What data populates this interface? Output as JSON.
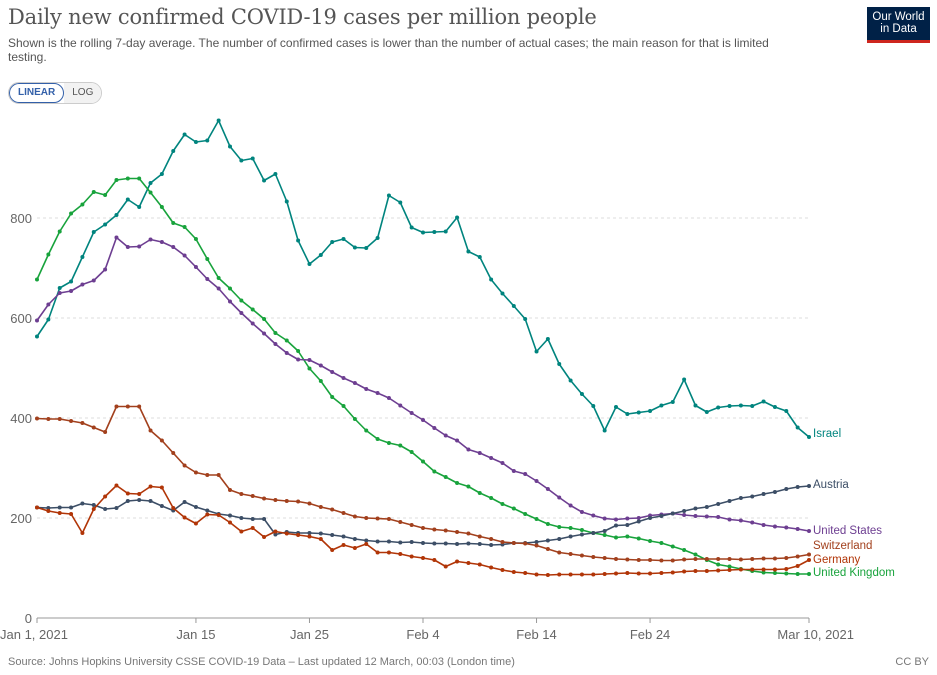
{
  "header": {
    "title": "Daily new confirmed COVID-19 cases per million people",
    "subtitle": "Shown is the rolling 7-day average. The number of confirmed cases is lower than the number of actual cases; the main reason for that is limited testing.",
    "logo_line1": "Our World",
    "logo_line2": "in Data"
  },
  "scale_toggle": {
    "linear": "LINEAR",
    "log": "LOG",
    "selected": "LINEAR"
  },
  "footer": {
    "source": "Source: Johns Hopkins University CSSE COVID-19 Data – Last updated 12 March, 00:03 (London time)",
    "license": "CC BY"
  },
  "chart_data": {
    "type": "line",
    "title": "Daily new confirmed COVID-19 cases per million people",
    "xlabel": "",
    "ylabel": "",
    "x_start": "Jan 1, 2021",
    "x_end": "Mar 10, 2021",
    "ylim": [
      0,
      1000
    ],
    "y_ticks": [
      0,
      200,
      400,
      600,
      800
    ],
    "x_ticks": [
      {
        "day": 0,
        "label": "Jan 1, 2021"
      },
      {
        "day": 14,
        "label": "Jan 15"
      },
      {
        "day": 24,
        "label": "Jan 25"
      },
      {
        "day": 34,
        "label": "Feb 4"
      },
      {
        "day": 44,
        "label": "Feb 14"
      },
      {
        "day": 54,
        "label": "Feb 24"
      },
      {
        "day": 68,
        "label": "Mar 10, 2021"
      }
    ],
    "grid": true,
    "legend": "end-of-line labels",
    "series": [
      {
        "name": "Israel",
        "color": "#00847e",
        "values": [
          563,
          597,
          660,
          673,
          722,
          772,
          787,
          806,
          837,
          822,
          870,
          888,
          934,
          967,
          952,
          955,
          995,
          943,
          915,
          919,
          875,
          888,
          833,
          755,
          708,
          726,
          752,
          758,
          741,
          740,
          760,
          845,
          831,
          781,
          771,
          772,
          773,
          801,
          733,
          722,
          677,
          649,
          624,
          598,
          533,
          558,
          508,
          475,
          448,
          424,
          375,
          422,
          408,
          411,
          414,
          425,
          432,
          477,
          425,
          412,
          421,
          424,
          425,
          424,
          433,
          422,
          414,
          381,
          362
        ]
      },
      {
        "name": "United Kingdom",
        "color": "#18a33c",
        "values": [
          677,
          727,
          773,
          809,
          827,
          852,
          846,
          876,
          879,
          879,
          851,
          822,
          790,
          782,
          758,
          718,
          680,
          659,
          635,
          617,
          598,
          570,
          555,
          534,
          499,
          474,
          442,
          424,
          398,
          375,
          358,
          350,
          345,
          332,
          313,
          293,
          282,
          270,
          263,
          250,
          240,
          228,
          219,
          208,
          198,
          188,
          182,
          180,
          176,
          170,
          166,
          161,
          163,
          159,
          154,
          150,
          143,
          136,
          127,
          116,
          107,
          103,
          98,
          94,
          91,
          90,
          89,
          88,
          88
        ]
      },
      {
        "name": "United States",
        "color": "#6d3e91",
        "values": [
          595,
          627,
          650,
          654,
          667,
          675,
          697,
          761,
          742,
          743,
          757,
          752,
          742,
          725,
          702,
          678,
          659,
          633,
          610,
          589,
          569,
          548,
          530,
          517,
          516,
          505,
          492,
          480,
          470,
          458,
          450,
          440,
          425,
          410,
          396,
          380,
          365,
          355,
          337,
          330,
          320,
          310,
          294,
          288,
          274,
          258,
          241,
          225,
          212,
          205,
          199,
          197,
          199,
          200,
          205,
          207,
          209,
          206,
          204,
          203,
          202,
          197,
          195,
          191,
          186,
          183,
          181,
          178,
          174
        ]
      },
      {
        "name": "Austria",
        "color": "#3c4e66",
        "values": [
          221,
          220,
          221,
          221,
          229,
          226,
          218,
          220,
          234,
          236,
          234,
          224,
          215,
          232,
          222,
          215,
          208,
          205,
          200,
          198,
          198,
          167,
          172,
          170,
          170,
          169,
          166,
          163,
          158,
          155,
          153,
          153,
          151,
          152,
          150,
          149,
          149,
          148,
          149,
          148,
          146,
          147,
          150,
          150,
          152,
          155,
          158,
          163,
          167,
          170,
          174,
          185,
          186,
          193,
          200,
          204,
          209,
          214,
          219,
          222,
          228,
          234,
          240,
          243,
          248,
          252,
          258,
          262,
          264
        ]
      },
      {
        "name": "Switzerland",
        "color": "#a2401d",
        "values": [
          399,
          398,
          398,
          394,
          390,
          381,
          372,
          423,
          423,
          423,
          375,
          355,
          330,
          305,
          291,
          286,
          286,
          256,
          248,
          244,
          239,
          236,
          234,
          233,
          229,
          222,
          217,
          210,
          203,
          200,
          199,
          198,
          192,
          186,
          180,
          177,
          175,
          172,
          169,
          163,
          158,
          152,
          150,
          149,
          145,
          138,
          131,
          128,
          125,
          122,
          120,
          118,
          117,
          116,
          116,
          115,
          115,
          117,
          118,
          118,
          118,
          118,
          117,
          118,
          119,
          119,
          120,
          123,
          127
        ]
      },
      {
        "name": "Germany",
        "color": "#b13507",
        "values": [
          221,
          214,
          210,
          208,
          170,
          218,
          243,
          265,
          249,
          248,
          263,
          261,
          220,
          201,
          189,
          207,
          206,
          191,
          173,
          180,
          162,
          173,
          169,
          166,
          163,
          158,
          136,
          146,
          140,
          148,
          131,
          131,
          128,
          123,
          120,
          116,
          103,
          113,
          110,
          107,
          101,
          96,
          92,
          90,
          87,
          86,
          87,
          87,
          87,
          87,
          88,
          89,
          90,
          89,
          89,
          90,
          91,
          93,
          94,
          94,
          95,
          96,
          97,
          97,
          97,
          97,
          98,
          104,
          116
        ]
      }
    ]
  }
}
